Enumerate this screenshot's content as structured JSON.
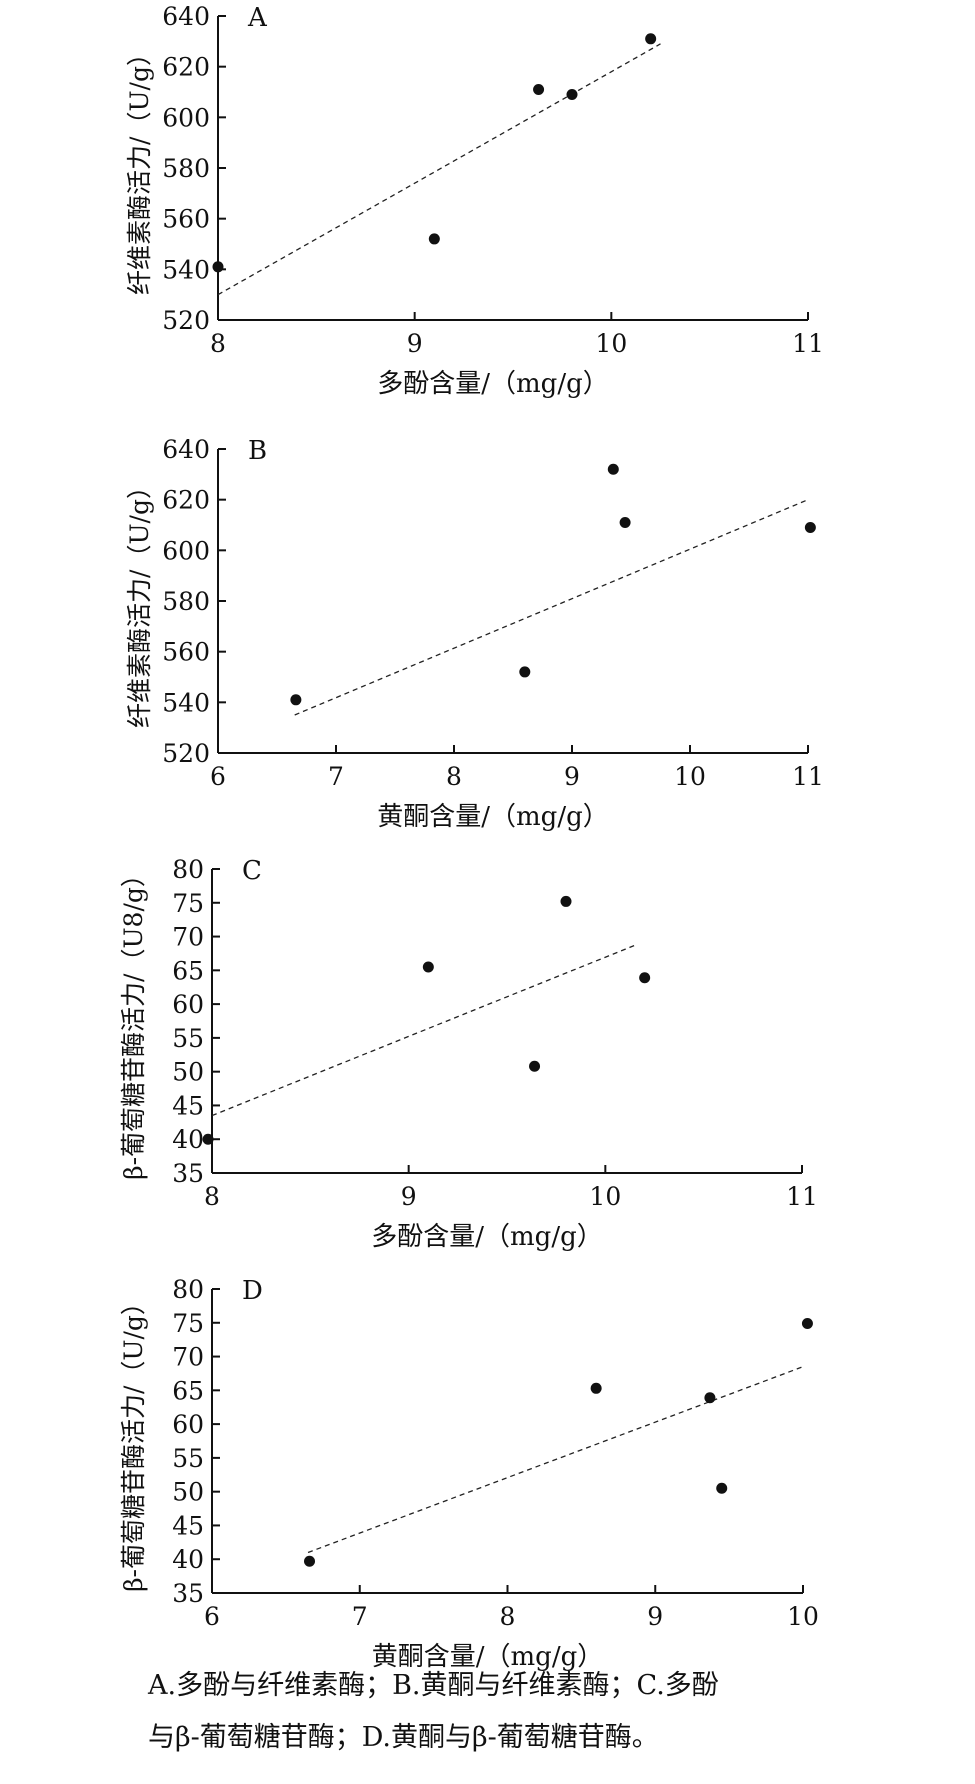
{
  "chart_data": [
    {
      "type": "scatter",
      "panel_label": "A",
      "xlabel": "多酚含量/（mg/g）",
      "ylabel": "纤维素酶活力/（U/g）",
      "xlim": [
        8,
        11
      ],
      "ylim": [
        520,
        640
      ],
      "xticks": [
        "8",
        "9",
        "10",
        "11"
      ],
      "yticks": [
        "520",
        "540",
        "560",
        "580",
        "600",
        "620",
        "640"
      ],
      "points": [
        [
          8.0,
          541
        ],
        [
          9.1,
          552
        ],
        [
          9.63,
          611
        ],
        [
          9.8,
          609
        ],
        [
          10.2,
          631
        ]
      ],
      "trendline": [
        [
          8.0,
          530
        ],
        [
          10.25,
          629
        ]
      ]
    },
    {
      "type": "scatter",
      "panel_label": "B",
      "xlabel": "黄酮含量/（mg/g）",
      "ylabel": "纤维素酶活力/（U/g）",
      "xlim": [
        6,
        11
      ],
      "ylim": [
        520,
        640
      ],
      "xticks": [
        "6",
        "7",
        "8",
        "9",
        "10",
        "11"
      ],
      "yticks": [
        "520",
        "540",
        "560",
        "580",
        "600",
        "620",
        "640"
      ],
      "points": [
        [
          6.66,
          541
        ],
        [
          8.6,
          552
        ],
        [
          9.35,
          632
        ],
        [
          9.45,
          611
        ],
        [
          11.02,
          609
        ]
      ],
      "trendline": [
        [
          6.65,
          535
        ],
        [
          11.0,
          620
        ]
      ]
    },
    {
      "type": "scatter",
      "panel_label": "C",
      "xlabel": "多酚含量/（mg/g）",
      "ylabel": "β-葡萄糖苷酶活力/（U8/g）",
      "xlim": [
        8,
        11
      ],
      "ylim": [
        35,
        80
      ],
      "xticks": [
        "8",
        "9",
        "10",
        "11"
      ],
      "yticks": [
        "35",
        "40",
        "45",
        "50",
        "55",
        "60",
        "65",
        "70",
        "75",
        "80"
      ],
      "points": [
        [
          7.98,
          40
        ],
        [
          9.1,
          65.5
        ],
        [
          9.64,
          50.8
        ],
        [
          9.8,
          75.2
        ],
        [
          10.2,
          63.9
        ]
      ],
      "trendline": [
        [
          8.0,
          43.5
        ],
        [
          10.15,
          68.7
        ]
      ]
    },
    {
      "type": "scatter",
      "panel_label": "D",
      "xlabel": "黄酮含量/（mg/g）",
      "ylabel": "β-葡萄糖苷酶活力/（U/g）",
      "xlim": [
        6,
        10
      ],
      "ylim": [
        35,
        80
      ],
      "xticks": [
        "6",
        "7",
        "8",
        "9",
        "10"
      ],
      "yticks": [
        "35",
        "40",
        "45",
        "50",
        "55",
        "60",
        "65",
        "70",
        "75",
        "80"
      ],
      "points": [
        [
          6.66,
          39.7
        ],
        [
          8.6,
          65.3
        ],
        [
          9.37,
          63.9
        ],
        [
          9.45,
          50.5
        ],
        [
          10.03,
          74.9
        ]
      ],
      "trendline": [
        [
          6.65,
          41
        ],
        [
          10.0,
          68.5
        ]
      ]
    }
  ],
  "caption": {
    "line1": "A.多酚与纤维素酶；B.黄酮与纤维素酶；C.多酚",
    "line2": "与β-葡萄糖苷酶；D.黄酮与β-葡萄糖苷酶。"
  }
}
